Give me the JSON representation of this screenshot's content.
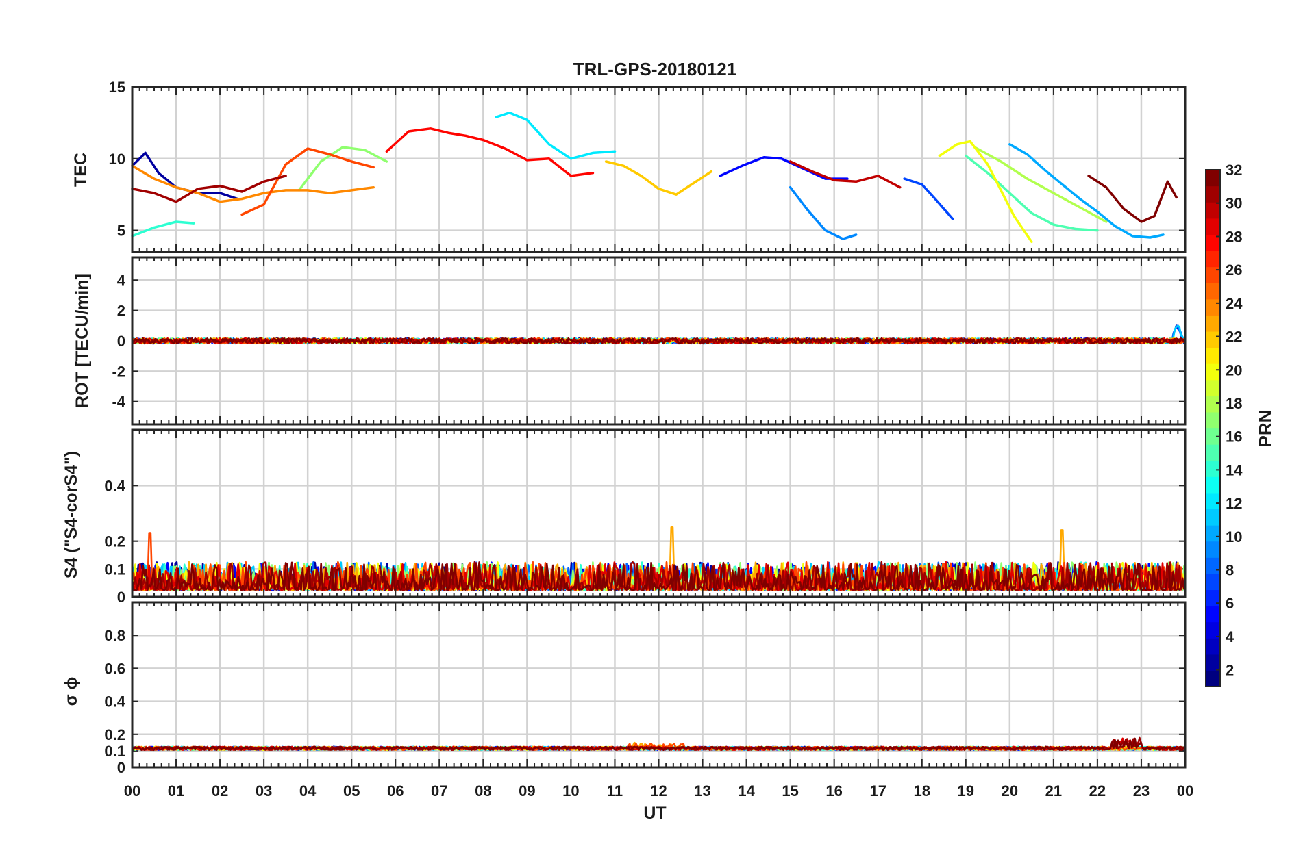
{
  "chart_data": {
    "type": "line",
    "title": "TRL-GPS-20180121",
    "xlabel": "UT",
    "x_ticks": [
      "00",
      "01",
      "02",
      "03",
      "04",
      "05",
      "06",
      "07",
      "08",
      "09",
      "10",
      "11",
      "12",
      "13",
      "14",
      "15",
      "16",
      "17",
      "18",
      "19",
      "20",
      "21",
      "22",
      "23",
      "00"
    ],
    "xlim": [
      0,
      24
    ],
    "grid": true,
    "colorbar": {
      "label": "PRN",
      "range": [
        1,
        32
      ],
      "ticks": [
        "2",
        "4",
        "6",
        "8",
        "10",
        "12",
        "14",
        "16",
        "18",
        "20",
        "22",
        "24",
        "26",
        "28",
        "30",
        "32"
      ],
      "colormap": "jet",
      "levels": 32
    },
    "panels": [
      {
        "id": "tec",
        "ylabel": "TEC",
        "ylim": [
          3.5,
          15
        ],
        "yticks": [
          "5",
          "10",
          "15"
        ],
        "series": [
          {
            "name": "PRN 2",
            "prn": 2,
            "x": [
              0.0,
              0.3,
              0.6,
              1.0,
              1.5,
              2.0,
              2.4
            ],
            "values": [
              9.5,
              10.4,
              9.0,
              8.0,
              7.6,
              7.6,
              7.2
            ]
          },
          {
            "name": "PRN 5",
            "prn": 5,
            "x": [
              13.4,
              13.9,
              14.4,
              14.8,
              15.3,
              15.8,
              16.3
            ],
            "values": [
              8.8,
              9.5,
              10.1,
              10.0,
              9.3,
              8.6,
              8.6
            ]
          },
          {
            "name": "PRN 7",
            "prn": 7,
            "x": [
              17.6,
              18.0,
              18.3,
              18.7
            ],
            "values": [
              8.6,
              8.2,
              7.2,
              5.8
            ]
          },
          {
            "name": "PRN 9",
            "prn": 9,
            "x": [
              15.0,
              15.4,
              15.8,
              16.2,
              16.5
            ],
            "values": [
              8.0,
              6.4,
              5.0,
              4.4,
              4.7
            ]
          },
          {
            "name": "PRN 10",
            "prn": 10,
            "x": [
              20.0,
              20.4,
              20.8,
              21.2,
              21.6,
              22.0,
              22.4,
              22.8,
              23.2,
              23.5
            ],
            "values": [
              11.0,
              10.3,
              9.2,
              8.2,
              7.2,
              6.3,
              5.3,
              4.6,
              4.5,
              4.7
            ]
          },
          {
            "name": "PRN 12",
            "prn": 12,
            "x": [
              8.3,
              8.6,
              9.0,
              9.5,
              10.0,
              10.5,
              11.0
            ],
            "values": [
              12.9,
              13.2,
              12.7,
              11.0,
              10.0,
              10.4,
              10.5
            ]
          },
          {
            "name": "PRN 14",
            "prn": 14,
            "x": [
              0.0,
              0.5,
              1.0,
              1.4
            ],
            "values": [
              4.6,
              5.2,
              5.6,
              5.5
            ]
          },
          {
            "name": "PRN 15",
            "prn": 15,
            "x": [
              19.0,
              19.5,
              20.0,
              20.5,
              21.0,
              21.5,
              22.0
            ],
            "values": [
              10.2,
              9.0,
              7.6,
              6.2,
              5.4,
              5.1,
              5.0
            ]
          },
          {
            "name": "PRN 17",
            "prn": 17,
            "x": [
              3.8,
              4.3,
              4.8,
              5.3,
              5.8
            ],
            "values": [
              7.8,
              9.8,
              10.8,
              10.6,
              9.8
            ]
          },
          {
            "name": "PRN 18",
            "prn": 18,
            "x": [
              19.2,
              19.8,
              20.4,
              21.0,
              21.6,
              22.2
            ],
            "values": [
              10.8,
              9.8,
              8.6,
              7.6,
              6.6,
              5.6
            ]
          },
          {
            "name": "PRN 20",
            "prn": 20,
            "x": [
              18.4,
              18.8,
              19.1,
              19.5,
              19.8,
              20.1,
              20.5
            ],
            "values": [
              10.2,
              11.0,
              11.2,
              9.6,
              7.8,
              6.0,
              4.2
            ]
          },
          {
            "name": "PRN 22",
            "prn": 22,
            "x": [
              10.8,
              11.2,
              11.6,
              12.0,
              12.4,
              12.8,
              13.2
            ],
            "values": [
              9.8,
              9.5,
              8.8,
              7.9,
              7.5,
              8.3,
              9.1
            ]
          },
          {
            "name": "PRN 24",
            "prn": 24,
            "x": [
              0.0,
              0.5,
              1.0,
              1.5,
              2.0,
              2.5,
              3.0,
              3.5,
              4.0,
              4.5,
              5.0,
              5.5
            ],
            "values": [
              9.5,
              8.6,
              8.0,
              7.6,
              7.0,
              7.2,
              7.6,
              7.8,
              7.8,
              7.6,
              7.8,
              8.0
            ]
          },
          {
            "name": "PRN 26",
            "prn": 26,
            "x": [
              2.5,
              3.0,
              3.5,
              4.0,
              4.5,
              5.0,
              5.5
            ],
            "values": [
              6.1,
              6.8,
              9.6,
              10.7,
              10.3,
              9.8,
              9.4
            ]
          },
          {
            "name": "PRN 28",
            "prn": 28,
            "x": [
              5.8,
              6.3,
              6.8,
              7.2,
              7.6,
              8.0,
              8.5,
              9.0,
              9.5,
              10.0,
              10.5
            ],
            "values": [
              10.5,
              11.9,
              12.1,
              11.8,
              11.6,
              11.3,
              10.7,
              9.9,
              10.0,
              8.8,
              9.0
            ]
          },
          {
            "name": "PRN 30",
            "prn": 30,
            "x": [
              15.0,
              15.5,
              16.0,
              16.5,
              17.0,
              17.5
            ],
            "values": [
              9.8,
              9.1,
              8.5,
              8.4,
              8.8,
              8.0
            ]
          },
          {
            "name": "PRN 31",
            "prn": 31,
            "x": [
              0.0,
              0.5,
              1.0,
              1.5,
              2.0,
              2.5,
              3.0,
              3.5
            ],
            "values": [
              7.9,
              7.6,
              7.0,
              7.9,
              8.1,
              7.7,
              8.4,
              8.8
            ]
          },
          {
            "name": "PRN 32",
            "prn": 32,
            "x": [
              21.8,
              22.2,
              22.6,
              23.0,
              23.3,
              23.6,
              23.8
            ],
            "values": [
              8.8,
              8.0,
              6.5,
              5.6,
              6.0,
              8.4,
              7.3
            ]
          }
        ]
      },
      {
        "id": "rot",
        "ylabel": "ROT [TECU/min]",
        "ylim": [
          -5.5,
          5.5
        ],
        "yticks": [
          "-4",
          "-2",
          "0",
          "2",
          "4"
        ],
        "series_note": "per-PRN ROT traces scattered about 0 (approximately ±0.3 TECU/min), all PRNs overlapping, with a spike to about 1 near 23.9 UT"
      },
      {
        "id": "s4",
        "ylabel": "S4 (\"S4-corS4\")",
        "ylim": [
          0,
          0.6
        ],
        "yticks": [
          "0",
          "0.1",
          "0.2",
          "0.4"
        ],
        "series_note": "per-PRN S4 noise mostly 0.02–0.12, with isolated peaks of about 0.23 near 00.4 UT, 0.25 near 12.3 UT and 0.24 near 21.2 UT"
      },
      {
        "id": "sigma_phi",
        "ylabel": "σ ϕ",
        "ylim": [
          0,
          1
        ],
        "yticks": [
          "0",
          "0.1",
          "0.2",
          "0.4",
          "0.6",
          "0.8"
        ],
        "series_note": "per-PRN phase-scintillation index near 0.12 for all satellites, with small bumps up to about 0.18 near 22.7 UT"
      }
    ]
  }
}
